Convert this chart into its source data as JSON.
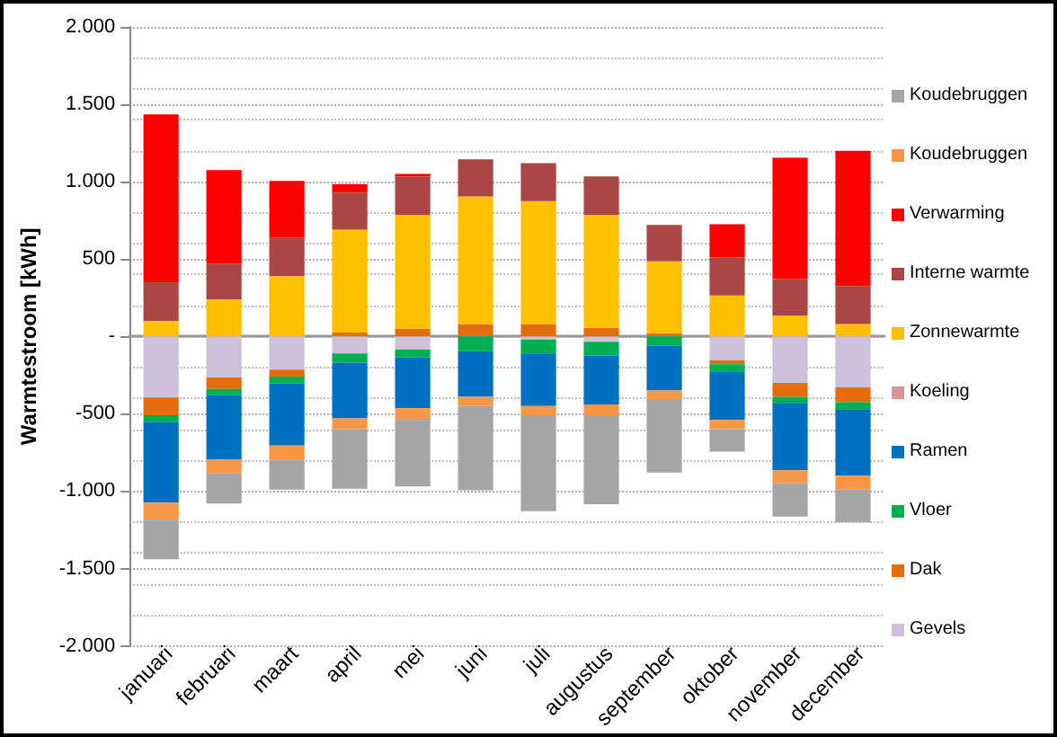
{
  "chart_data": {
    "type": "bar",
    "stacked": true,
    "ylabel": "Warmtestroom [kWh]",
    "categories": [
      "januari",
      "februari",
      "maart",
      "april",
      "mei",
      "juni",
      "juli",
      "augustus",
      "september",
      "oktober",
      "november",
      "december"
    ],
    "ylim": [
      -2000,
      2000
    ],
    "yticks": [
      {
        "value": -2000,
        "label": "-2.000"
      },
      {
        "value": -1500,
        "label": "-1.500"
      },
      {
        "value": -1000,
        "label": "-1.000"
      },
      {
        "value": -500,
        "label": "-500"
      },
      {
        "value": 0,
        "label": "-"
      },
      {
        "value": 500,
        "label": "500"
      },
      {
        "value": 1000,
        "label": "1.000"
      },
      {
        "value": 1500,
        "label": "1.500"
      },
      {
        "value": 2000,
        "label": "2.000"
      }
    ],
    "grid": "y",
    "legend": "right",
    "series": [
      {
        "name": "Gevels",
        "color": "#ccc0da",
        "values": [
          -395,
          -265,
          -215,
          -110,
          -85,
          null,
          -20,
          -35,
          null,
          -155,
          -300,
          -330
        ]
      },
      {
        "name": "Dak",
        "color": "#e46c0a",
        "values": [
          -115,
          -75,
          -45,
          25,
          50,
          80,
          80,
          55,
          20,
          -25,
          -90,
          -95
        ]
      },
      {
        "name": "Vloer",
        "color": "#00b050",
        "values": [
          -45,
          -40,
          -45,
          -60,
          -50,
          -95,
          -95,
          -90,
          -60,
          -50,
          -40,
          -45
        ]
      },
      {
        "name": "Ramen",
        "color": "#0070c0",
        "values": [
          -520,
          -415,
          -400,
          -360,
          -330,
          -295,
          -335,
          -315,
          -290,
          -310,
          -435,
          -430
        ]
      },
      {
        "name": "Koeling",
        "color": "#d99694",
        "values": [
          0,
          0,
          0,
          0,
          0,
          0,
          0,
          0,
          0,
          0,
          0,
          0
        ]
      },
      {
        "name": "Zonnewarmte",
        "color": "#ffc000",
        "values": [
          100,
          240,
          390,
          665,
          735,
          825,
          795,
          730,
          465,
          265,
          135,
          80
        ]
      },
      {
        "name": "Interne warmte",
        "color": "#aa4643",
        "values": [
          250,
          230,
          250,
          240,
          250,
          240,
          245,
          250,
          235,
          245,
          235,
          245
        ]
      },
      {
        "name": "Verwarming",
        "color": "#ff0000",
        "values": [
          1085,
          605,
          365,
          55,
          15,
          0,
          0,
          0,
          0,
          215,
          785,
          875
        ]
      },
      {
        "name": "Koudebruggen",
        "color": "#f79646",
        "values": [
          -110,
          -90,
          -90,
          -70,
          -75,
          -60,
          -65,
          -70,
          -55,
          -60,
          -85,
          -90
        ]
      },
      {
        "name": "Koudebruggen",
        "color": "#a5a5a5",
        "values": [
          -255,
          -195,
          -195,
          -385,
          -430,
          -545,
          -615,
          -575,
          -475,
          -145,
          -215,
          -210
        ]
      }
    ]
  }
}
